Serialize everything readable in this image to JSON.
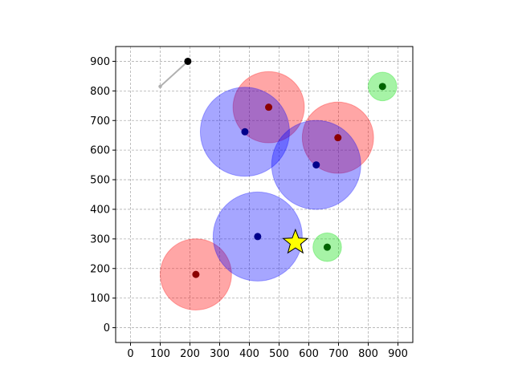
{
  "chart_data": {
    "type": "scatter",
    "title": "",
    "xlabel": "",
    "ylabel": "",
    "xlim": [
      -50,
      950
    ],
    "ylim": [
      -50,
      950
    ],
    "grid": true,
    "x_ticks": [
      0,
      100,
      200,
      300,
      400,
      500,
      600,
      700,
      800,
      900
    ],
    "y_ticks": [
      0,
      100,
      200,
      300,
      400,
      500,
      600,
      700,
      800,
      900
    ],
    "colors": {
      "red_fill": "#ff0000",
      "red_center": "#8b0000",
      "blue_fill": "#0000ff",
      "blue_center": "#00008b",
      "green_fill": "#00dd00",
      "green_center": "#006400",
      "star": "#ffff00",
      "trail": "#b0b0b0"
    },
    "circles": [
      {
        "group": "red",
        "x": 220,
        "y": 180,
        "r": 120
      },
      {
        "group": "red",
        "x": 465,
        "y": 745,
        "r": 120
      },
      {
        "group": "red",
        "x": 698,
        "y": 642,
        "r": 120
      },
      {
        "group": "blue",
        "x": 385,
        "y": 662,
        "r": 150
      },
      {
        "group": "blue",
        "x": 625,
        "y": 550,
        "r": 150
      },
      {
        "group": "blue",
        "x": 428,
        "y": 308,
        "r": 150
      },
      {
        "group": "green",
        "x": 848,
        "y": 815,
        "r": 48
      },
      {
        "group": "green",
        "x": 662,
        "y": 272,
        "r": 48
      }
    ],
    "trail": {
      "x": [
        100,
        193
      ],
      "y": [
        815,
        900
      ]
    },
    "agent": {
      "x": 193,
      "y": 900
    },
    "star": {
      "x": 555,
      "y": 288
    }
  }
}
